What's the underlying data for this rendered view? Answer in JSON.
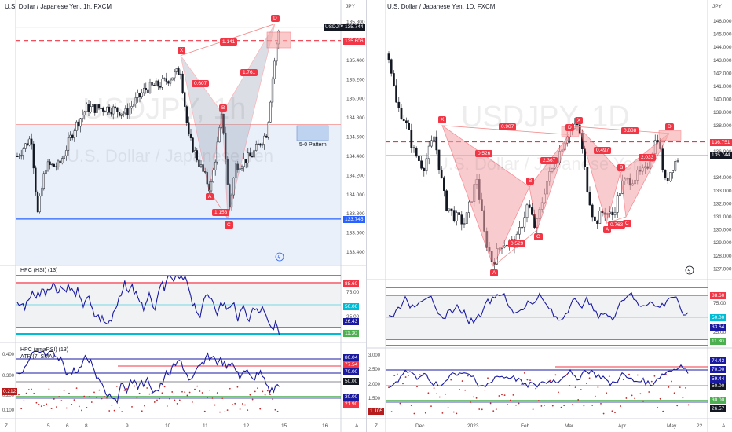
{
  "panels": [
    {
      "id": "left",
      "title": "U.S. Dollar / Japanese Yen, 1h, FXCM",
      "watermark_symbol": "USDJPY, 1h",
      "watermark_desc": "U.S. Dollar / Japanese Yen",
      "currency": "JPY",
      "price_axis": [
        "135.800",
        "135.600",
        "135.400",
        "135.200",
        "135.000",
        "134.800",
        "134.600",
        "134.400",
        "134.200",
        "134.000",
        "133.800",
        "133.600",
        "133.400"
      ],
      "price_tags": [
        {
          "text": "USDJPY",
          "color": "#131722"
        },
        {
          "text": "135.744",
          "color": "#131722"
        },
        {
          "text": "135.606",
          "color": "#f23645"
        },
        {
          "text": "133.745",
          "color": "#2962ff"
        }
      ],
      "time_axis": [
        "Z",
        "5",
        "6",
        "8",
        "9",
        "10",
        "11",
        "12",
        "15",
        "16",
        "A"
      ],
      "points": [
        {
          "label": "X"
        },
        {
          "label": "A"
        },
        {
          "label": "B"
        },
        {
          "label": "C"
        },
        {
          "label": "D"
        }
      ],
      "ratios": [
        "0.607",
        "1.141",
        "1.761",
        "1.158"
      ],
      "box_label": "5-0 Pattern",
      "indicator1": {
        "name": "HPC (HSI) (13)",
        "axis": [
          "75.00",
          "25.00"
        ],
        "tags": [
          {
            "text": "88.60",
            "color": "#f23645"
          },
          {
            "text": "50.00",
            "color": "#00bcd4"
          },
          {
            "text": "26.43",
            "color": "#1a1aa0"
          },
          {
            "text": "11.30",
            "color": "#4caf50"
          }
        ]
      },
      "indicator2": {
        "name": "HPC (amaRSI) (13)",
        "name2": "ATR (7, SMA)",
        "axis": [
          "0.400",
          "0.300",
          "0.200",
          "0.100"
        ],
        "tags": [
          {
            "text": "80.04",
            "color": "#1a1aa0"
          },
          {
            "text": "77.54",
            "color": "#f23645"
          },
          {
            "text": "70.00",
            "color": "#1a1aa0"
          },
          {
            "text": "50.00",
            "color": "#131722"
          },
          {
            "text": "30.00",
            "color": "#1a1aa0"
          },
          {
            "text": "21.90",
            "color": "#f23645"
          }
        ],
        "left_tag": "0.212"
      }
    },
    {
      "id": "right",
      "title": "U.S. Dollar / Japanese Yen, 1D, FXCM",
      "watermark_symbol": "USDJPY, 1D",
      "watermark_desc": "U.S. Dollar / Japanese Yen",
      "currency": "JPY",
      "price_axis": [
        "146.000",
        "145.000",
        "144.000",
        "143.000",
        "142.000",
        "141.000",
        "140.000",
        "139.000",
        "138.000",
        "137.000",
        "136.000",
        "135.000",
        "134.000",
        "133.000",
        "132.000",
        "131.000",
        "130.000",
        "129.000",
        "128.000",
        "127.000"
      ],
      "price_tags": [
        {
          "text": "136.751",
          "color": "#f23645"
        },
        {
          "text": "135.744",
          "color": "#131722"
        }
      ],
      "time_axis": [
        "Z",
        "Dec",
        "2023",
        "Feb",
        "Mar",
        "Apr",
        "May",
        "22",
        "A"
      ],
      "points_pattern1": [
        {
          "label": "X"
        },
        {
          "label": "A"
        },
        {
          "label": "B"
        },
        {
          "label": "C"
        },
        {
          "label": "D"
        }
      ],
      "points_pattern2": [
        {
          "label": "X"
        },
        {
          "label": "A"
        },
        {
          "label": "B"
        },
        {
          "label": "C"
        },
        {
          "label": "D"
        }
      ],
      "ratios": [
        "0.907",
        "0.526",
        "2.367",
        "0.529",
        "0.888",
        "0.497",
        "2.033",
        "0.763"
      ],
      "indicator1": {
        "axis": [
          "75.00",
          "25.00"
        ],
        "tags": [
          {
            "text": "88.60",
            "color": "#f23645"
          },
          {
            "text": "50.00",
            "color": "#00bcd4"
          },
          {
            "text": "33.64",
            "color": "#1a1aa0"
          },
          {
            "text": "11.30",
            "color": "#4caf50"
          }
        ]
      },
      "indicator2": {
        "axis": [
          "3.000",
          "2.500",
          "2.000",
          "1.500"
        ],
        "tags": [
          {
            "text": "74.43",
            "color": "#1a1aa0"
          },
          {
            "text": "70.00",
            "color": "#1a1aa0"
          },
          {
            "text": "59.44",
            "color": "#1a1aa0"
          },
          {
            "text": "50.00",
            "color": "#131722"
          },
          {
            "text": "30.00",
            "color": "#4caf50"
          },
          {
            "text": "26.57",
            "color": "#131722"
          }
        ],
        "left_tag": "1.105"
      }
    }
  ],
  "chart_data": [
    {
      "type": "line",
      "title": "U.S. Dollar / Japanese Yen, 1h, FXCM",
      "xlabel": "",
      "ylabel": "JPY",
      "ylim": [
        133.3,
        135.9
      ],
      "series": [
        {
          "name": "USDJPY",
          "x": [
            "4",
            "5",
            "6",
            "8",
            "9",
            "10",
            "10",
            "11",
            "11",
            "12",
            "12",
            "15"
          ],
          "values": [
            134.4,
            134.0,
            134.9,
            134.9,
            135.0,
            135.3,
            134.5,
            133.95,
            134.9,
            133.9,
            134.6,
            135.74
          ]
        }
      ],
      "pattern": {
        "X": 135.45,
        "A": 134.05,
        "B": 134.85,
        "C": 133.75,
        "D": 135.78
      },
      "levels": {
        "last": 135.744,
        "red": 135.606,
        "blue": 133.745,
        "zone_top": 134.73
      }
    },
    {
      "type": "line",
      "title": "U.S. Dollar / Japanese Yen, 1D, FXCM",
      "xlabel": "",
      "ylabel": "JPY",
      "ylim": [
        126.5,
        146.5
      ],
      "series": [
        {
          "name": "USDJPY",
          "x": [
            "Nov",
            "Dec",
            "2023",
            "Jan",
            "Feb",
            "Mar",
            "Apr",
            "May"
          ],
          "values": [
            139.0,
            136.0,
            131.5,
            128.0,
            132.0,
            137.5,
            130.5,
            135.744
          ]
        }
      ],
      "pattern1": {
        "X": 138.0,
        "A": 127.2,
        "B": 133.3,
        "C": 130.0,
        "D": 137.3
      },
      "pattern2": {
        "X": 137.9,
        "A": 130.5,
        "B": 134.4,
        "C": 131.0,
        "D": 137.4
      },
      "levels": {
        "last": 135.744,
        "red": 136.751
      }
    }
  ]
}
